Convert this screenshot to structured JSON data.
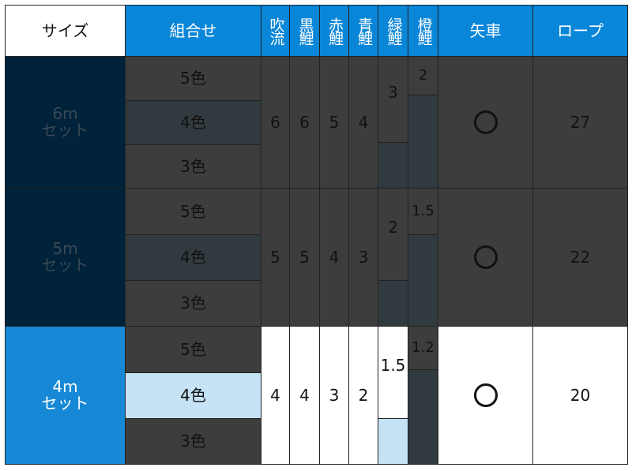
{
  "headers": {
    "size": "サイズ",
    "combo": "組合せ",
    "fukinagashi": "吹流",
    "kurogoi": "黒鯉",
    "akagoi": "赤鯉",
    "aogoi": "青鯉",
    "midorigoi": "緑鯉",
    "daidaigoi": "橙鯉",
    "yaguruma": "矢車",
    "rope": "ロープ"
  },
  "groups": [
    {
      "size": "6m\nセット",
      "combos": [
        "5色",
        "4色",
        "3色"
      ],
      "fukinagashi": "6",
      "kurogoi": "6",
      "akagoi": "5",
      "aogoi": "4",
      "midorigoi": "3",
      "daidaigoi": "2",
      "yaguruma": "○",
      "rope": "27"
    },
    {
      "size": "5m\nセット",
      "combos": [
        "5色",
        "4色",
        "3色"
      ],
      "fukinagashi": "5",
      "kurogoi": "5",
      "akagoi": "4",
      "aogoi": "3",
      "midorigoi": "2",
      "daidaigoi": "1.5",
      "yaguruma": "○",
      "rope": "22"
    },
    {
      "size": "4m\nセット",
      "combos": [
        "5色",
        "4色",
        "3色"
      ],
      "fukinagashi": "4",
      "kurogoi": "4",
      "akagoi": "3",
      "aogoi": "2",
      "midorigoi": "1.5",
      "daidaigoi": "1.2",
      "yaguruma": "○",
      "rope": "20"
    }
  ],
  "colors": {
    "header_blue": "#0a86d8",
    "navy": "#00223b",
    "gray": "#3d3d3d",
    "dark": "#313a3e",
    "light_blue": "#c6e3f6",
    "selected_blue": "#1788d6"
  }
}
